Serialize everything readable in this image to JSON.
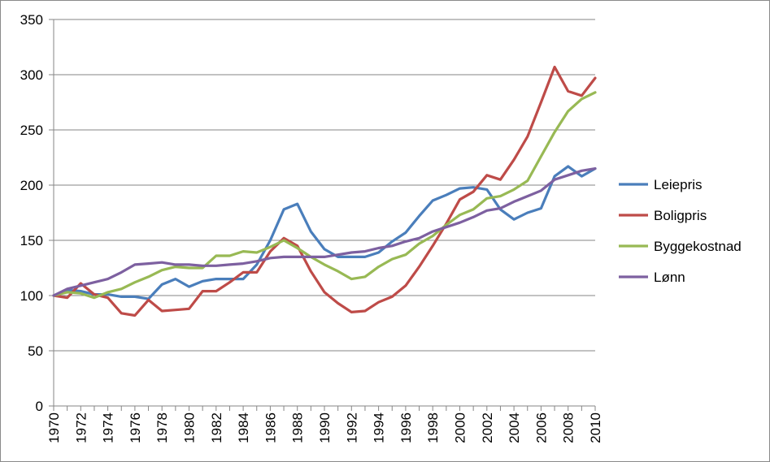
{
  "chart_data": {
    "type": "line",
    "x": [
      1970,
      1971,
      1972,
      1973,
      1974,
      1975,
      1976,
      1977,
      1978,
      1979,
      1980,
      1981,
      1982,
      1983,
      1984,
      1985,
      1986,
      1987,
      1988,
      1989,
      1990,
      1991,
      1992,
      1993,
      1994,
      1995,
      1996,
      1997,
      1998,
      1999,
      2000,
      2001,
      2002,
      2003,
      2004,
      2005,
      2006,
      2007,
      2008,
      2009,
      2010
    ],
    "x_tick_labels": [
      "1970",
      "1972",
      "1974",
      "1976",
      "1978",
      "1980",
      "1982",
      "1984",
      "1986",
      "1988",
      "1990",
      "1992",
      "1994",
      "1996",
      "1998",
      "2000",
      "2002",
      "2004",
      "2006",
      "2008",
      "2010"
    ],
    "y_tick_labels": [
      "0",
      "50",
      "100",
      "150",
      "200",
      "250",
      "300",
      "350"
    ],
    "ylim": [
      0,
      350
    ],
    "grid": true,
    "legend_position": "right",
    "series": [
      {
        "name": "Leiepris",
        "color": "#4a7ebb",
        "values": [
          100,
          105,
          104,
          101,
          101,
          99,
          99,
          97,
          110,
          115,
          108,
          113,
          115,
          115,
          115,
          128,
          150,
          178,
          183,
          158,
          142,
          135,
          135,
          135,
          139,
          149,
          157,
          172,
          186,
          191,
          197,
          198,
          196,
          178,
          169,
          175,
          179,
          208,
          217,
          208,
          215
        ]
      },
      {
        "name": "Boligpris",
        "color": "#be4b48",
        "values": [
          100,
          98,
          111,
          101,
          98,
          84,
          82,
          96,
          86,
          87,
          88,
          104,
          104,
          112,
          121,
          121,
          140,
          152,
          145,
          122,
          103,
          93,
          85,
          86,
          94,
          99,
          109,
          126,
          145,
          165,
          187,
          194,
          209,
          205,
          223,
          244,
          275,
          307,
          285,
          281,
          297
        ]
      },
      {
        "name": "Byggekostnad",
        "color": "#98b954",
        "values": [
          100,
          103,
          102,
          98,
          103,
          106,
          112,
          117,
          123,
          126,
          125,
          125,
          136,
          136,
          140,
          139,
          144,
          150,
          143,
          135,
          128,
          122,
          115,
          117,
          126,
          133,
          137,
          147,
          154,
          164,
          173,
          178,
          188,
          190,
          196,
          204,
          226,
          248,
          267,
          278,
          284
        ]
      },
      {
        "name": "Lønn",
        "color": "#7d60a0",
        "values": [
          100,
          106,
          109,
          112,
          115,
          121,
          128,
          129,
          130,
          128,
          128,
          127,
          127,
          128,
          129,
          131,
          134,
          135,
          135,
          135,
          135,
          137,
          139,
          140,
          143,
          145,
          149,
          152,
          158,
          162,
          166,
          171,
          177,
          179,
          185,
          190,
          195,
          205,
          209,
          213,
          215
        ]
      }
    ]
  }
}
